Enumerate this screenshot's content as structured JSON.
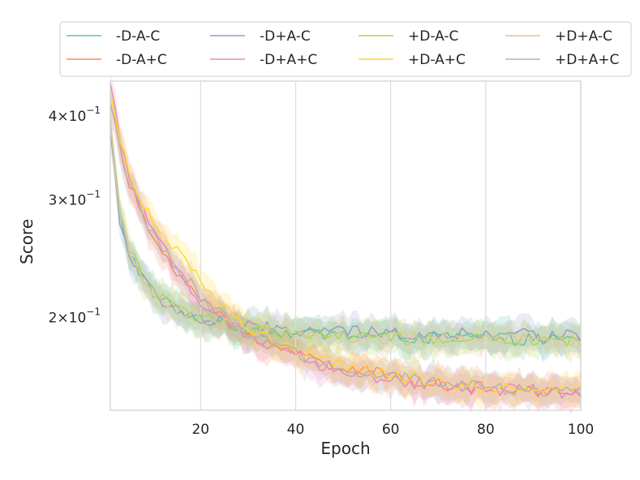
{
  "chart_data": {
    "type": "line",
    "title": "",
    "xlabel": "Epoch",
    "ylabel": "Score",
    "yscale": "log",
    "xlim": [
      1,
      100
    ],
    "ylim": [
      0.145,
      0.45
    ],
    "grid": "vertical",
    "legend_position": "top",
    "legend_columns": 4,
    "x_ticks": [
      {
        "value": 20,
        "label": "20"
      },
      {
        "value": 40,
        "label": "40"
      },
      {
        "value": 60,
        "label": "60"
      },
      {
        "value": 80,
        "label": "80"
      },
      {
        "value": 100,
        "label": "100"
      }
    ],
    "y_ticks": [
      {
        "value": 0.4,
        "base": "4",
        "exp": "−1"
      },
      {
        "value": 0.3,
        "base": "3",
        "exp": "−1"
      },
      {
        "value": 0.2,
        "base": "2",
        "exp": "−1"
      }
    ],
    "x_keypoints": [
      1,
      2,
      3,
      5,
      8,
      10,
      15,
      20,
      25,
      30,
      40,
      50,
      60,
      70,
      80,
      90,
      100
    ],
    "series": [
      {
        "name": "-D-A-C",
        "color": "#66c2a5",
        "values": [
          0.385,
          0.33,
          0.285,
          0.25,
          0.228,
          0.218,
          0.205,
          0.199,
          0.195,
          0.192,
          0.189,
          0.188,
          0.187,
          0.186,
          0.186,
          0.185,
          0.184
        ]
      },
      {
        "name": "-D-A+C",
        "color": "#fc8d62",
        "values": [
          0.42,
          0.39,
          0.355,
          0.315,
          0.28,
          0.262,
          0.235,
          0.212,
          0.198,
          0.188,
          0.176,
          0.168,
          0.163,
          0.159,
          0.156,
          0.155,
          0.154
        ]
      },
      {
        "name": "-D+A-C",
        "color": "#8da0cb",
        "values": [
          0.38,
          0.325,
          0.28,
          0.248,
          0.226,
          0.216,
          0.204,
          0.198,
          0.195,
          0.193,
          0.191,
          0.19,
          0.189,
          0.189,
          0.188,
          0.188,
          0.187
        ]
      },
      {
        "name": "-D+A+C",
        "color": "#e78ac3",
        "values": [
          0.44,
          0.41,
          0.37,
          0.325,
          0.285,
          0.265,
          0.236,
          0.212,
          0.197,
          0.186,
          0.174,
          0.166,
          0.161,
          0.158,
          0.156,
          0.155,
          0.153
        ]
      },
      {
        "name": "+D-A-C",
        "color": "#a6d854",
        "values": [
          0.39,
          0.335,
          0.29,
          0.252,
          0.23,
          0.219,
          0.206,
          0.199,
          0.195,
          0.192,
          0.189,
          0.187,
          0.186,
          0.185,
          0.185,
          0.184,
          0.183
        ]
      },
      {
        "name": "+D-A+C",
        "color": "#ffd92f",
        "values": [
          0.43,
          0.4,
          0.365,
          0.33,
          0.295,
          0.277,
          0.25,
          0.225,
          0.205,
          0.192,
          0.178,
          0.169,
          0.164,
          0.16,
          0.157,
          0.156,
          0.155
        ]
      },
      {
        "name": "+D+A-C",
        "color": "#e5c494",
        "values": [
          0.385,
          0.33,
          0.285,
          0.25,
          0.228,
          0.218,
          0.205,
          0.199,
          0.195,
          0.192,
          0.189,
          0.187,
          0.186,
          0.186,
          0.185,
          0.185,
          0.184
        ]
      },
      {
        "name": "+D+A+C",
        "color": "#b3b3b3",
        "values": [
          0.42,
          0.39,
          0.355,
          0.318,
          0.283,
          0.265,
          0.238,
          0.214,
          0.199,
          0.188,
          0.176,
          0.168,
          0.163,
          0.159,
          0.157,
          0.155,
          0.154
        ]
      }
    ]
  }
}
